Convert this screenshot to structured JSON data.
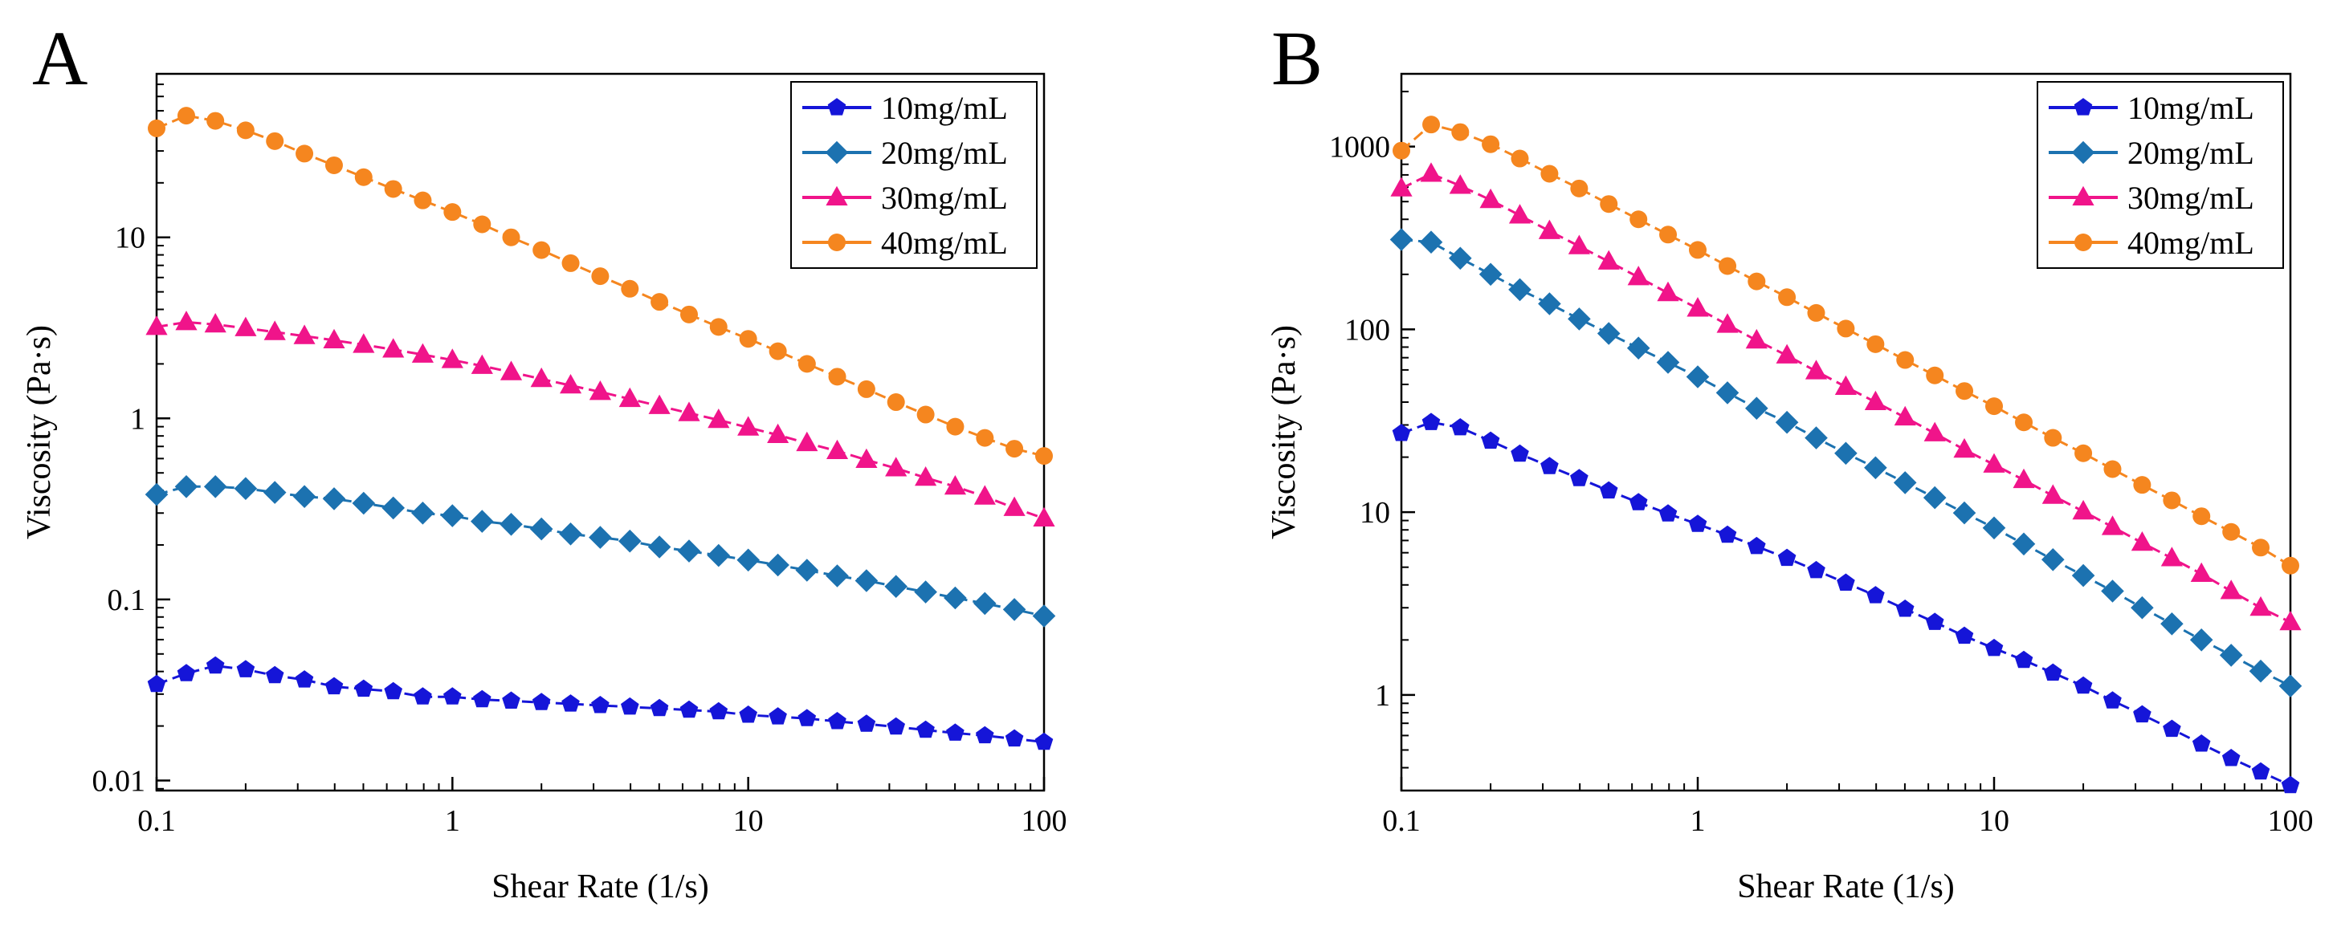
{
  "colors": {
    "10mg/mL": "#1515d8",
    "20mg/mL": "#1c72b0",
    "30mg/mL": "#f0148a",
    "40mg/mL": "#f5861f"
  },
  "chart_data": [
    {
      "type": "line",
      "panel_label": "A",
      "xscale": "log",
      "yscale": "log",
      "xlabel": "Shear Rate (1/s)",
      "ylabel": "Viscosity (Pa·s)",
      "xlim": [
        0.1,
        100
      ],
      "ylim": [
        0.0088,
        80
      ],
      "xticks": [
        0.1,
        1,
        10,
        100
      ],
      "xtick_labels": [
        "0.1",
        "1",
        "10",
        "100"
      ],
      "yticks": [
        0.01,
        0.1,
        1,
        10
      ],
      "ytick_labels": [
        "0.01",
        "0.1",
        "1",
        "10"
      ],
      "legend_position": "top-right",
      "series": [
        {
          "name": "10mg/mL",
          "marker": "pentagon",
          "x": [
            0.1,
            0.126,
            0.158,
            0.2,
            0.251,
            0.316,
            0.398,
            0.501,
            0.631,
            0.794,
            1,
            1.26,
            1.58,
            2,
            2.51,
            3.16,
            3.98,
            5.01,
            6.31,
            7.94,
            10,
            12.6,
            15.8,
            20,
            25.1,
            31.6,
            39.8,
            50.1,
            63.1,
            79.4,
            100
          ],
          "y": [
            0.034,
            0.039,
            0.043,
            0.041,
            0.038,
            0.036,
            0.033,
            0.032,
            0.031,
            0.029,
            0.029,
            0.028,
            0.0275,
            0.027,
            0.0265,
            0.026,
            0.0255,
            0.025,
            0.0245,
            0.024,
            0.023,
            0.0225,
            0.022,
            0.0212,
            0.0205,
            0.0198,
            0.019,
            0.0183,
            0.0177,
            0.017,
            0.0163
          ]
        },
        {
          "name": "20mg/mL",
          "marker": "diamond",
          "x": [
            0.1,
            0.126,
            0.158,
            0.2,
            0.251,
            0.316,
            0.398,
            0.501,
            0.631,
            0.794,
            1,
            1.26,
            1.58,
            2,
            2.51,
            3.16,
            3.98,
            5.01,
            6.31,
            7.94,
            10,
            12.6,
            15.8,
            20,
            25.1,
            31.6,
            39.8,
            50.1,
            63.1,
            79.4,
            100
          ],
          "y": [
            0.38,
            0.42,
            0.42,
            0.41,
            0.39,
            0.37,
            0.36,
            0.34,
            0.32,
            0.3,
            0.29,
            0.27,
            0.26,
            0.245,
            0.23,
            0.22,
            0.21,
            0.195,
            0.185,
            0.175,
            0.165,
            0.155,
            0.145,
            0.135,
            0.127,
            0.118,
            0.11,
            0.102,
            0.095,
            0.088,
            0.081
          ]
        },
        {
          "name": "30mg/mL",
          "marker": "triangle",
          "x": [
            0.1,
            0.126,
            0.158,
            0.2,
            0.251,
            0.316,
            0.398,
            0.501,
            0.631,
            0.794,
            1,
            1.26,
            1.58,
            2,
            2.51,
            3.16,
            3.98,
            5.01,
            6.31,
            7.94,
            10,
            12.6,
            15.8,
            20,
            25.1,
            31.6,
            39.8,
            50.1,
            63.1,
            79.4,
            100
          ],
          "y": [
            3.2,
            3.4,
            3.3,
            3.15,
            3.0,
            2.85,
            2.7,
            2.55,
            2.4,
            2.25,
            2.1,
            1.95,
            1.8,
            1.65,
            1.52,
            1.4,
            1.28,
            1.17,
            1.07,
            0.98,
            0.89,
            0.81,
            0.73,
            0.66,
            0.59,
            0.53,
            0.47,
            0.42,
            0.37,
            0.32,
            0.28
          ]
        },
        {
          "name": "40mg/mL",
          "marker": "circle",
          "x": [
            0.1,
            0.126,
            0.158,
            0.2,
            0.251,
            0.316,
            0.398,
            0.501,
            0.631,
            0.794,
            1,
            1.26,
            1.58,
            2,
            2.51,
            3.16,
            3.98,
            5.01,
            6.31,
            7.94,
            10,
            12.6,
            15.8,
            20,
            25.1,
            31.6,
            39.8,
            50.1,
            63.1,
            79.4,
            100
          ],
          "y": [
            40,
            47,
            44,
            39,
            34,
            29,
            25,
            21.5,
            18.5,
            16,
            13.8,
            11.8,
            10,
            8.5,
            7.2,
            6.1,
            5.2,
            4.4,
            3.75,
            3.2,
            2.75,
            2.35,
            2.0,
            1.7,
            1.45,
            1.23,
            1.05,
            0.9,
            0.78,
            0.68,
            0.62
          ]
        }
      ]
    },
    {
      "type": "line",
      "panel_label": "B",
      "xscale": "log",
      "yscale": "log",
      "xlabel": "Shear Rate (1/s)",
      "ylabel": "Viscosity (Pa·s)",
      "xlim": [
        0.1,
        100
      ],
      "ylim": [
        0.3,
        2500
      ],
      "xticks": [
        0.1,
        1,
        10,
        100
      ],
      "xtick_labels": [
        "0.1",
        "1",
        "10",
        "100"
      ],
      "yticks": [
        1,
        10,
        100,
        1000
      ],
      "ytick_labels": [
        "1",
        "10",
        "100",
        "1000"
      ],
      "legend_position": "top-right",
      "series": [
        {
          "name": "10mg/mL",
          "marker": "pentagon",
          "x": [
            0.1,
            0.126,
            0.158,
            0.2,
            0.251,
            0.316,
            0.398,
            0.501,
            0.631,
            0.794,
            1,
            1.26,
            1.58,
            2,
            2.51,
            3.16,
            3.98,
            5.01,
            6.31,
            7.94,
            10,
            12.6,
            15.8,
            20,
            25.1,
            31.6,
            39.8,
            50.1,
            63.1,
            79.4,
            100
          ],
          "y": [
            27,
            31,
            29,
            24.5,
            20.8,
            17.8,
            15.3,
            13.1,
            11.3,
            9.8,
            8.6,
            7.5,
            6.5,
            5.6,
            4.8,
            4.1,
            3.5,
            2.95,
            2.5,
            2.1,
            1.8,
            1.55,
            1.32,
            1.12,
            0.93,
            0.78,
            0.65,
            0.54,
            0.45,
            0.38,
            0.32
          ]
        },
        {
          "name": "20mg/mL",
          "marker": "diamond",
          "x": [
            0.1,
            0.126,
            0.158,
            0.2,
            0.251,
            0.316,
            0.398,
            0.501,
            0.631,
            0.794,
            1,
            1.26,
            1.58,
            2,
            2.51,
            3.16,
            3.98,
            5.01,
            6.31,
            7.94,
            10,
            12.6,
            15.8,
            20,
            25.1,
            31.6,
            39.8,
            50.1,
            63.1,
            79.4,
            100
          ],
          "y": [
            310,
            300,
            245,
            200,
            165,
            138,
            114,
            95,
            79,
            66,
            55,
            45,
            37,
            31,
            25.5,
            21,
            17.5,
            14.5,
            12,
            9.9,
            8.2,
            6.7,
            5.5,
            4.5,
            3.7,
            3.0,
            2.45,
            2.0,
            1.65,
            1.35,
            1.12
          ]
        },
        {
          "name": "30mg/mL",
          "marker": "triangle",
          "x": [
            0.1,
            0.126,
            0.158,
            0.2,
            0.251,
            0.316,
            0.398,
            0.501,
            0.631,
            0.794,
            1,
            1.26,
            1.58,
            2,
            2.51,
            3.16,
            3.98,
            5.01,
            6.31,
            7.94,
            10,
            12.6,
            15.8,
            20,
            25.1,
            31.6,
            39.8,
            50.1,
            63.1,
            79.4,
            100
          ],
          "y": [
            590,
            710,
            610,
            510,
            420,
            345,
            285,
            235,
            193,
            158,
            130,
            106,
            87,
            72,
            59,
            48.5,
            40,
            33,
            27,
            22,
            18.2,
            15,
            12.3,
            10.1,
            8.3,
            6.8,
            5.6,
            4.6,
            3.7,
            3.0,
            2.5
          ]
        },
        {
          "name": "40mg/mL",
          "marker": "circle",
          "x": [
            0.1,
            0.126,
            0.158,
            0.2,
            0.251,
            0.316,
            0.398,
            0.501,
            0.631,
            0.794,
            1,
            1.26,
            1.58,
            2,
            2.51,
            3.16,
            3.98,
            5.01,
            6.31,
            7.94,
            10,
            12.6,
            15.8,
            20,
            25.1,
            31.6,
            39.8,
            50.1,
            63.1,
            79.4,
            100
          ],
          "y": [
            950,
            1320,
            1200,
            1030,
            860,
            710,
            590,
            485,
            400,
            330,
            272,
            222,
            183,
            150,
            123,
            101,
            83,
            68,
            56,
            46,
            38,
            31,
            25.5,
            21,
            17.2,
            14.1,
            11.6,
            9.5,
            7.8,
            6.4,
            5.1
          ]
        }
      ]
    }
  ]
}
